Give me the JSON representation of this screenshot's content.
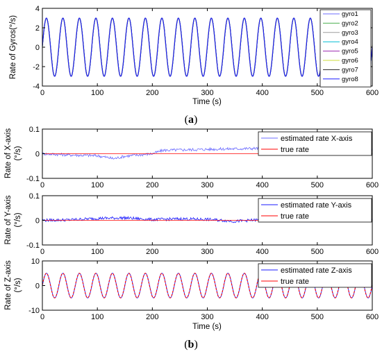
{
  "panel_labels": [
    {
      "open": "(",
      "letter": "a",
      "close": ")"
    },
    {
      "open": "(",
      "letter": "b",
      "close": ")"
    }
  ],
  "chart_data": [
    {
      "type": "line",
      "xlabel": "Time (s)",
      "ylabel": "Rate of Gyros(°/s)",
      "xlim": [
        0,
        600
      ],
      "ylim": [
        -4,
        4
      ],
      "xticks": [
        0,
        100,
        200,
        300,
        400,
        500,
        600
      ],
      "yticks": [
        -4,
        -2,
        0,
        2,
        4
      ],
      "legend": "top-right",
      "signal": {
        "form": "sine",
        "amplitude": 3,
        "period_s": 30,
        "duration_s": 600
      },
      "series": [
        {
          "name": "gyro1",
          "color": "#6b6bff"
        },
        {
          "name": "gyro2",
          "color": "#4caf50"
        },
        {
          "name": "gyro3",
          "color": "#9e9e9e"
        },
        {
          "name": "gyro4",
          "color": "#00bcd4"
        },
        {
          "name": "gyro5",
          "color": "#9c27b0"
        },
        {
          "name": "gyro6",
          "color": "#cddc39"
        },
        {
          "name": "gyro7",
          "color": "#222222"
        },
        {
          "name": "gyro8",
          "color": "#1e1eff"
        }
      ]
    },
    {
      "type": "line",
      "xlabel": "",
      "ylabel": [
        "Rate of X-axis",
        "(°/s)"
      ],
      "xlim": [
        0,
        600
      ],
      "ylim": [
        -0.1,
        0.1
      ],
      "xticks": [
        0,
        100,
        200,
        300,
        400,
        500,
        600
      ],
      "yticks": [
        -0.1,
        0,
        0.1
      ],
      "legend": "top-right",
      "series": [
        {
          "name": "estimated rate X-axis",
          "color": "#6b6bff",
          "x": [
            0,
            50,
            100,
            130,
            150,
            200,
            220,
            300,
            350,
            400,
            450,
            500,
            550,
            600
          ],
          "y": [
            0.0,
            -0.005,
            -0.008,
            -0.02,
            -0.01,
            0.0,
            0.014,
            0.018,
            0.02,
            0.022,
            0.022,
            0.02,
            0.02,
            0.02
          ],
          "noise": 0.006
        },
        {
          "name": "true rate",
          "color": "#ff0000",
          "x": [
            0,
            600
          ],
          "y": [
            0,
            0
          ]
        }
      ]
    },
    {
      "type": "line",
      "xlabel": "",
      "ylabel": [
        "Rate of Y-axis",
        "(°/s)"
      ],
      "xlim": [
        0,
        600
      ],
      "ylim": [
        -0.1,
        0.1
      ],
      "xticks": [
        0,
        100,
        200,
        300,
        400,
        500,
        600
      ],
      "yticks": [
        -0.1,
        0,
        0.1
      ],
      "legend": "top-right",
      "series": [
        {
          "name": "estimated rate Y-axis",
          "color": "#1a1aff",
          "x": [
            0,
            50,
            100,
            150,
            200,
            250,
            300,
            350,
            400,
            450,
            500,
            550,
            600
          ],
          "y": [
            0.0,
            0.002,
            0.008,
            0.01,
            0.003,
            0.006,
            0.004,
            -0.004,
            0.003,
            0.006,
            0.006,
            0.004,
            0.004
          ],
          "noise": 0.006
        },
        {
          "name": "true rate",
          "color": "#ff0000",
          "x": [
            0,
            600
          ],
          "y": [
            0,
            0
          ]
        }
      ]
    },
    {
      "type": "line",
      "xlabel": "Time (s)",
      "ylabel": [
        "Rate of Z-axis",
        "(°/s)"
      ],
      "xlim": [
        0,
        600
      ],
      "ylim": [
        -10,
        10
      ],
      "xticks": [
        0,
        100,
        200,
        300,
        400,
        500,
        600
      ],
      "yticks": [
        -10,
        0,
        10
      ],
      "legend": "top-right",
      "signal": {
        "form": "sine",
        "amplitude": 5,
        "period_s": 30,
        "duration_s": 600
      },
      "series": [
        {
          "name": "estimated rate Z-axis",
          "color": "#1a1aff"
        },
        {
          "name": "true rate",
          "color": "#ff0000"
        }
      ]
    }
  ]
}
